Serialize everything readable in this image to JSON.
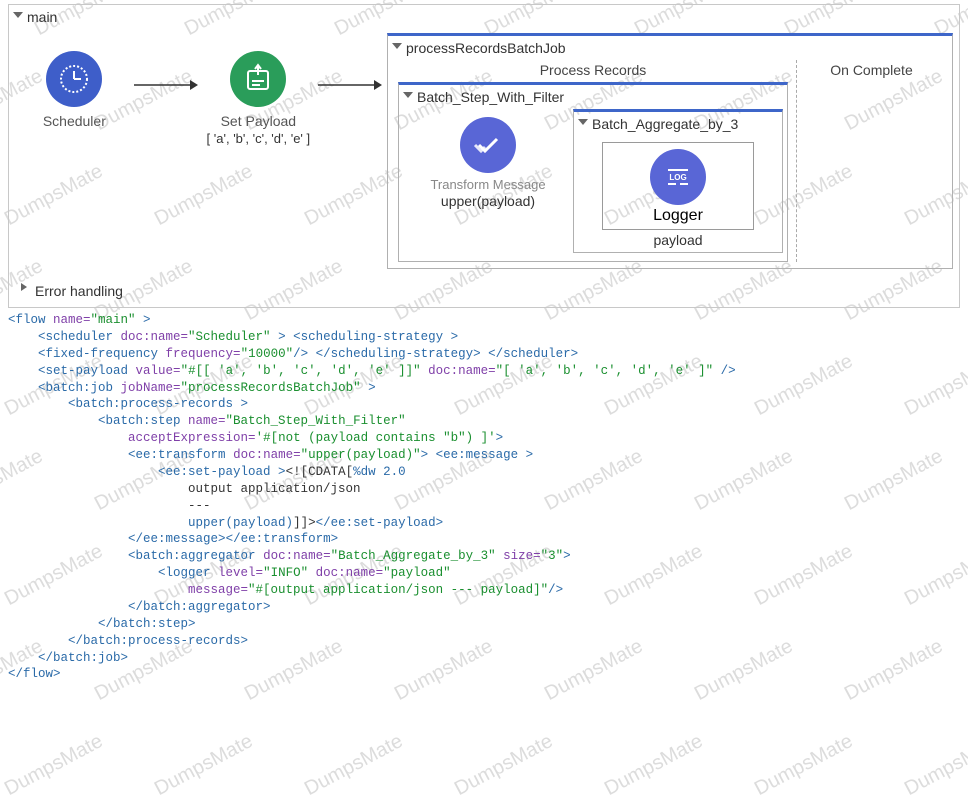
{
  "flow": {
    "mainLabel": "main",
    "errorLabel": "Error handling",
    "scheduler": {
      "name": "Scheduler",
      "color": "#3e5ec9"
    },
    "setPayload": {
      "name": "Set Payload",
      "sub": "[ 'a', 'b', 'c', 'd', 'e' ]",
      "color": "#2a9d5a"
    },
    "batchJob": {
      "title": "processRecordsBatchJob",
      "processLabel": "Process Records",
      "onCompleteLabel": "On Complete",
      "step": {
        "title": "Batch_Step_With_Filter",
        "transform": {
          "name": "Transform Message",
          "sub": "upper(payload)",
          "color": "#5966d6"
        },
        "aggregator": {
          "title": "Batch_Aggregate_by_3",
          "logger": {
            "name": "Logger",
            "sub": "payload",
            "color": "#5966d6"
          }
        }
      }
    }
  },
  "code": {
    "l1a": "<flow ",
    "l1b": "name=",
    "l1c": "\"main\"",
    "l1d": " >",
    "l2a": "<scheduler ",
    "l2b": "doc:name=",
    "l2c": "\"Scheduler\"",
    "l2d": " > ",
    "l2e": "<scheduling-strategy >",
    "l3a": "<fixed-frequency ",
    "l3b": "frequency=",
    "l3c": "\"10000\"",
    "l3d": "/> ",
    "l3e": "</scheduling-strategy> ",
    "l3f": "</scheduler>",
    "l4a": "<set-payload ",
    "l4b": "value=",
    "l4c": "\"#[[ 'a', 'b', 'c', 'd', 'e' ]]\"",
    "l4d": " doc:name=",
    "l4e": "\"[ 'a', 'b', 'c', 'd', 'e' ]\"",
    "l4f": " />",
    "l5a": "<batch:job ",
    "l5b": "jobName=",
    "l5c": "\"processRecordsBatchJob\"",
    "l5d": " >",
    "l6a": "<batch:process-records >",
    "l7a": "<batch:step ",
    "l7b": "name=",
    "l7c": "\"Batch_Step_With_Filter\"",
    "l8a": "acceptExpression=",
    "l8b": "'#[not (payload contains \"b\") ]'",
    "l8c": ">",
    "l9a": "<ee:transform ",
    "l9b": "doc:name=",
    "l9c": "\"upper(payload)\"",
    "l9d": "> ",
    "l9e": "<ee:message >",
    "l10a": "<ee:set-payload >",
    "l10b": "<![CDATA[",
    "l10c": "%dw 2.0",
    "l11a": "output application/json",
    "l12a": "---",
    "l13a": "upper(payload)",
    "l13b": "]]>",
    "l13c": "</ee:set-payload>",
    "l14a": "</ee:message>",
    "l14b": "</ee:transform>",
    "l15a": "<batch:aggregator ",
    "l15b": "doc:name=",
    "l15c": "\"Batch_Aggregate_by_3\"",
    "l15d": " size=",
    "l15e": "\"3\"",
    "l15f": ">",
    "l16a": "<logger ",
    "l16b": "level=",
    "l16c": "\"INFO\"",
    "l16d": " doc:name=",
    "l16e": "\"payload\"",
    "l17a": "message=",
    "l17b": "\"#[output application/json --- payload]\"",
    "l17c": "/>",
    "l18a": "</batch:aggregator>",
    "l19a": "</batch:step>",
    "l20a": "</batch:process-records>",
    "l21a": "</batch:job>",
    "l22a": "</flow>"
  },
  "watermarkText": "DumpsMate",
  "colors": {
    "borderBlue": "#3e66c9",
    "borderGray": "#b0b0b0",
    "iconBlue": "#5966d6",
    "iconGreen": "#2a9d5a",
    "iconDarkBlue": "#3e5ec9"
  }
}
